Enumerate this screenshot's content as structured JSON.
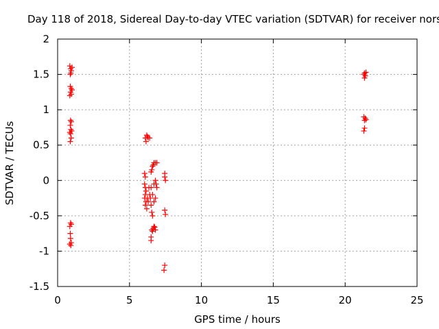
{
  "chart_data": {
    "type": "scatter",
    "title": "Day 118 of 2018, Sidereal Day-to-day VTEC variation (SDTVAR) for receiver nors",
    "xlabel": "GPS time / hours",
    "ylabel": "SDTVAR / TECUs",
    "xlim": [
      0,
      25
    ],
    "ylim": [
      -1.5,
      2
    ],
    "xticks": [
      0,
      5,
      10,
      15,
      20,
      25
    ],
    "xtick_labels": [
      "0",
      "5",
      "10",
      "15",
      "20",
      "25"
    ],
    "yticks": [
      -1.5,
      -1,
      -0.5,
      0,
      0.5,
      1,
      1.5,
      2
    ],
    "ytick_labels": [
      "-1.5",
      "-1",
      "-0.5",
      "0",
      "0.5",
      "1",
      "1.5",
      "2"
    ],
    "grid": true,
    "marker": "+",
    "series": [
      {
        "name": "SDTVAR",
        "color": "#ff0000",
        "points": [
          [
            0.85,
            1.62
          ],
          [
            0.9,
            1.58
          ],
          [
            0.95,
            1.55
          ],
          [
            1.0,
            1.6
          ],
          [
            0.88,
            1.5
          ],
          [
            0.92,
            1.52
          ],
          [
            0.88,
            1.33
          ],
          [
            0.95,
            1.3
          ],
          [
            1.0,
            1.28
          ],
          [
            0.9,
            1.25
          ],
          [
            0.85,
            1.2
          ],
          [
            0.95,
            1.22
          ],
          [
            0.9,
            0.85
          ],
          [
            0.95,
            0.83
          ],
          [
            0.88,
            0.78
          ],
          [
            0.92,
            0.72
          ],
          [
            0.98,
            0.7
          ],
          [
            0.85,
            0.68
          ],
          [
            0.9,
            0.66
          ],
          [
            0.95,
            0.6
          ],
          [
            0.88,
            0.55
          ],
          [
            0.9,
            -0.6
          ],
          [
            0.85,
            -0.65
          ],
          [
            0.95,
            -0.62
          ],
          [
            0.88,
            -0.75
          ],
          [
            0.9,
            -0.82
          ],
          [
            0.95,
            -0.88
          ],
          [
            0.85,
            -0.9
          ],
          [
            0.92,
            -0.92
          ],
          [
            6.1,
            0.6
          ],
          [
            6.2,
            0.64
          ],
          [
            6.25,
            0.62
          ],
          [
            6.3,
            0.6
          ],
          [
            6.4,
            0.6
          ],
          [
            6.15,
            0.55
          ],
          [
            6.05,
            0.1
          ],
          [
            6.1,
            0.05
          ],
          [
            6.05,
            -0.05
          ],
          [
            6.1,
            -0.1
          ],
          [
            6.15,
            -0.15
          ],
          [
            6.1,
            -0.2
          ],
          [
            6.05,
            -0.25
          ],
          [
            6.15,
            -0.3
          ],
          [
            6.1,
            -0.35
          ],
          [
            6.2,
            -0.4
          ],
          [
            6.25,
            -0.25
          ],
          [
            6.3,
            -0.3
          ],
          [
            6.35,
            -0.1
          ],
          [
            6.4,
            -0.2
          ],
          [
            6.45,
            -0.25
          ],
          [
            6.5,
            -0.35
          ],
          [
            6.55,
            -0.45
          ],
          [
            6.6,
            -0.5
          ],
          [
            6.5,
            0.12
          ],
          [
            6.55,
            0.15
          ],
          [
            6.6,
            0.2
          ],
          [
            6.65,
            0.22
          ],
          [
            6.7,
            0.25
          ],
          [
            6.8,
            0.25
          ],
          [
            6.9,
            0.25
          ],
          [
            6.5,
            -0.1
          ],
          [
            6.6,
            -0.2
          ],
          [
            6.7,
            -0.3
          ],
          [
            6.8,
            -0.25
          ],
          [
            6.9,
            -0.1
          ],
          [
            6.7,
            -0.05
          ],
          [
            6.8,
            0.0
          ],
          [
            6.85,
            -0.05
          ],
          [
            6.55,
            -0.7
          ],
          [
            6.6,
            -0.72
          ],
          [
            6.65,
            -0.68
          ],
          [
            6.7,
            -0.65
          ],
          [
            6.75,
            -0.66
          ],
          [
            6.8,
            -0.7
          ],
          [
            6.5,
            -0.8
          ],
          [
            6.5,
            -0.85
          ],
          [
            7.45,
            0.1
          ],
          [
            7.45,
            0.05
          ],
          [
            7.5,
            0.0
          ],
          [
            7.45,
            -0.42
          ],
          [
            7.5,
            -0.48
          ],
          [
            7.45,
            -1.2
          ],
          [
            7.4,
            -1.27
          ],
          [
            21.3,
            1.5
          ],
          [
            21.35,
            1.52
          ],
          [
            21.4,
            1.48
          ],
          [
            21.45,
            1.53
          ],
          [
            21.35,
            1.45
          ],
          [
            21.3,
            0.9
          ],
          [
            21.4,
            0.88
          ],
          [
            21.35,
            0.85
          ],
          [
            21.45,
            0.86
          ],
          [
            21.35,
            0.74
          ],
          [
            21.3,
            0.7
          ]
        ]
      }
    ]
  }
}
